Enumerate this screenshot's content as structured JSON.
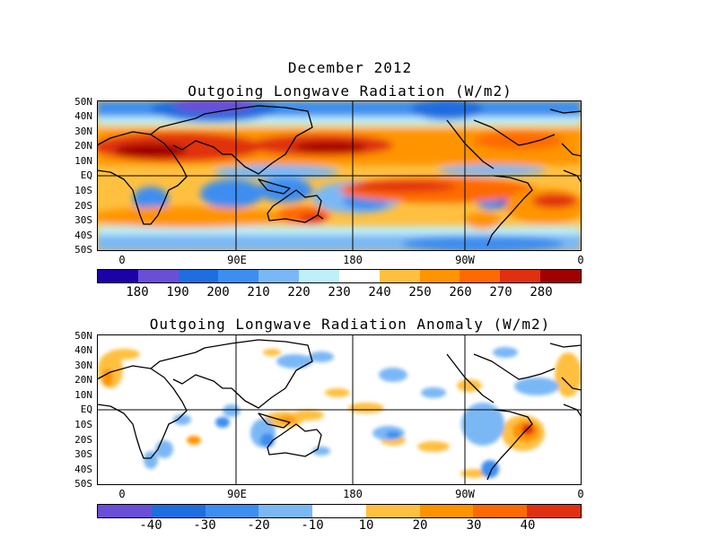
{
  "header": {
    "date": "December 2012",
    "title_main": "Outgoing Longwave Radiation (W/m2)",
    "title_anom": "Outgoing Longwave Radiation Anomaly (W/m2)"
  },
  "lat_labels": [
    "50N",
    "40N",
    "30N",
    "20N",
    "10N",
    "EQ",
    "10S",
    "20S",
    "30S",
    "40S",
    "50S"
  ],
  "lon_labels": [
    "0",
    "90E",
    "180",
    "90W",
    "0"
  ],
  "colorbar_main": {
    "labels": [
      "180",
      "190",
      "200",
      "210",
      "220",
      "230",
      "240",
      "250",
      "260",
      "270",
      "280"
    ],
    "colors": [
      "#1c00a8",
      "#6a4ed6",
      "#1e6ee0",
      "#3c8ef0",
      "#7ab8f5",
      "#bfeff8",
      "#ffffff",
      "#ffc040",
      "#ff9400",
      "#ff6a00",
      "#e03010",
      "#a00000"
    ]
  },
  "colorbar_anom": {
    "labels": [
      "-40",
      "-30",
      "-20",
      "-10",
      "10",
      "20",
      "30",
      "40"
    ],
    "colors": [
      "#6a4ed6",
      "#1e6ee0",
      "#3c8ef0",
      "#7ab8f5",
      "#ffffff",
      "#ffc040",
      "#ff9400",
      "#ff6a00",
      "#e03010"
    ]
  }
}
